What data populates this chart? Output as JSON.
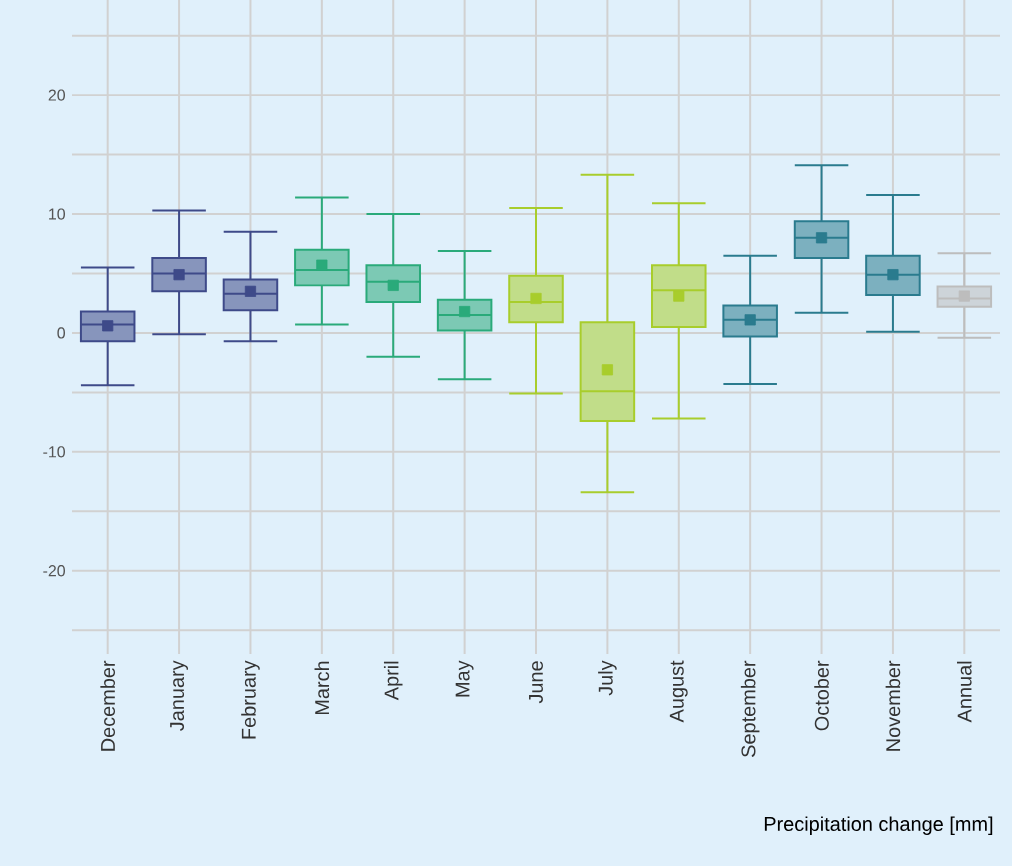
{
  "chart_data": {
    "type": "box",
    "xlabel": "Precipitation change [mm]",
    "categories": [
      "December",
      "January",
      "February",
      "March",
      "April",
      "May",
      "June",
      "July",
      "August",
      "September",
      "October",
      "November",
      "Annual"
    ],
    "colors": [
      "#3e4a89",
      "#3e4a89",
      "#3e4a89",
      "#2aaa7a",
      "#2aaa7a",
      "#2aaa7a",
      "#a8cd2c",
      "#a8cd2c",
      "#a8cd2c",
      "#2a7b8e",
      "#2a7b8e",
      "#2a7b8e",
      "#bdbdbd"
    ],
    "boxes": [
      {
        "low": -4.4,
        "q1": -0.7,
        "median": 0.7,
        "q3": 1.8,
        "high": 5.5,
        "mean": 0.6
      },
      {
        "low": -0.1,
        "q1": 3.5,
        "median": 5.0,
        "q3": 6.3,
        "high": 10.3,
        "mean": 4.9
      },
      {
        "low": -0.7,
        "q1": 1.9,
        "median": 3.3,
        "q3": 4.5,
        "high": 8.5,
        "mean": 3.5
      },
      {
        "low": 0.7,
        "q1": 4.0,
        "median": 5.3,
        "q3": 7.0,
        "high": 11.4,
        "mean": 5.7
      },
      {
        "low": -2.0,
        "q1": 2.6,
        "median": 4.3,
        "q3": 5.7,
        "high": 10.0,
        "mean": 4.0
      },
      {
        "low": -3.9,
        "q1": 0.2,
        "median": 1.5,
        "q3": 2.8,
        "high": 6.9,
        "mean": 1.8
      },
      {
        "low": -5.1,
        "q1": 0.9,
        "median": 2.6,
        "q3": 4.8,
        "high": 10.5,
        "mean": 2.9
      },
      {
        "low": -13.4,
        "q1": -7.4,
        "median": -4.9,
        "q3": 0.9,
        "high": 13.3,
        "mean": -3.1
      },
      {
        "low": -7.2,
        "q1": 0.5,
        "median": 3.6,
        "q3": 5.7,
        "high": 10.9,
        "mean": 3.1
      },
      {
        "low": -4.3,
        "q1": -0.3,
        "median": 1.1,
        "q3": 2.3,
        "high": 6.5,
        "mean": 1.1
      },
      {
        "low": 1.7,
        "q1": 6.3,
        "median": 8.0,
        "q3": 9.4,
        "high": 14.1,
        "mean": 8.0
      },
      {
        "low": 0.1,
        "q1": 3.2,
        "median": 4.9,
        "q3": 6.5,
        "high": 11.6,
        "mean": 4.9
      },
      {
        "low": -0.4,
        "q1": 2.2,
        "median": 2.9,
        "q3": 3.9,
        "high": 6.7,
        "mean": 3.1
      }
    ],
    "ylim": [
      -27,
      28
    ],
    "yticks": [
      {
        "value": -25,
        "label": null
      },
      -20,
      {
        "value": -15,
        "label": null
      },
      -10,
      {
        "value": -5,
        "label": null
      },
      0,
      {
        "value": 5,
        "label": null
      },
      10,
      {
        "value": 15,
        "label": null
      },
      20,
      {
        "value": 25,
        "label": null
      }
    ],
    "grid": true,
    "marker": "square"
  }
}
